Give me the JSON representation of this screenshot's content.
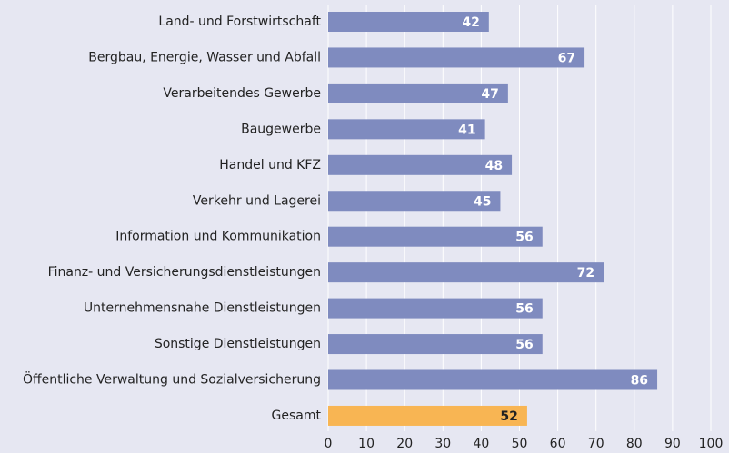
{
  "chart_data": {
    "type": "barh",
    "categories": [
      "Land- und Forstwirtschaft",
      "Bergbau, Energie, Wasser und Abfall",
      "Verarbeitendes Gewerbe",
      "Baugewerbe",
      "Handel und KFZ",
      "Verkehr und Lagerei",
      "Information und Kommunikation",
      "Finanz- und Versicherungsdienstleistungen",
      "Unternehmensnahe Dienstleistungen",
      "Sonstige Dienstleistungen",
      "Öffentliche Verwaltung und Sozialversicherung",
      "Gesamt"
    ],
    "values": [
      42,
      67,
      47,
      41,
      48,
      45,
      56,
      72,
      56,
      56,
      86,
      52
    ],
    "colors": [
      "#7f8bbf",
      "#7f8bbf",
      "#7f8bbf",
      "#7f8bbf",
      "#7f8bbf",
      "#7f8bbf",
      "#7f8bbf",
      "#7f8bbf",
      "#7f8bbf",
      "#7f8bbf",
      "#7f8bbf",
      "#f8b553"
    ],
    "xlim": [
      0,
      100
    ],
    "xticks": [
      0,
      10,
      20,
      30,
      40,
      50,
      60,
      70,
      80,
      90,
      100
    ],
    "grid": true
  }
}
